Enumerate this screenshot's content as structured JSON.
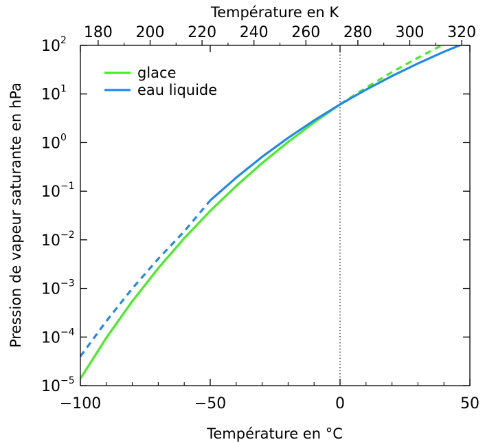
{
  "chart_data": {
    "type": "line",
    "xlabel": "Température en °C",
    "x2label": "Température en K",
    "ylabel": "Pression de vapeur saturante en hPa",
    "xlim": [
      -100,
      50
    ],
    "x2lim": [
      173.15,
      323.15
    ],
    "ylim": [
      1e-05,
      100
    ],
    "yscale": "log",
    "x_ticks": [
      "−100",
      "−50",
      "0",
      "50"
    ],
    "x2_ticks": [
      "180",
      "200",
      "220",
      "240",
      "260",
      "280",
      "300",
      "320"
    ],
    "y_ticks": [
      {
        "base": "10",
        "exp": "−5"
      },
      {
        "base": "10",
        "exp": "−4"
      },
      {
        "base": "10",
        "exp": "−3"
      },
      {
        "base": "10",
        "exp": "−2"
      },
      {
        "base": "10",
        "exp": "−1"
      },
      {
        "base": "10",
        "exp": "0"
      },
      {
        "base": "10",
        "exp": "1"
      },
      {
        "base": "10",
        "exp": "2"
      }
    ],
    "legend_position": "top-left",
    "series": [
      {
        "name": "glace",
        "color": "#44ee22",
        "solid": {
          "x": [
            -100,
            -90,
            -80,
            -70,
            -60,
            -50,
            -40,
            -30,
            -20,
            -10,
            0
          ],
          "y": [
            1.39e-05,
            9.67e-05,
            0.000547,
            0.00261,
            0.0108,
            0.0393,
            0.128,
            0.38,
            1.03,
            2.6,
            6.11
          ]
        },
        "dashed": {
          "x": [
            0,
            10,
            20,
            30,
            40,
            45
          ],
          "y": [
            6.11,
            13.5,
            28.2,
            55.9,
            105.6,
            140
          ]
        }
      },
      {
        "name": "eau liquide",
        "color": "#1f88ee",
        "solid": {
          "x": [
            -50,
            -40,
            -30,
            -20,
            -10,
            0,
            10,
            20,
            30,
            40,
            47
          ],
          "y": [
            0.0646,
            0.19,
            0.51,
            1.25,
            2.86,
            6.11,
            12.27,
            23.37,
            42.43,
            73.77,
            105
          ]
        },
        "dashed": {
          "x": [
            -100,
            -90,
            -80,
            -70,
            -60,
            -50
          ],
          "y": [
            3.99e-05,
            0.000213,
            0.000995,
            0.00408,
            0.0149,
            0.0646
          ]
        }
      }
    ],
    "reference_line": {
      "x": 0,
      "style": "dotted"
    }
  }
}
